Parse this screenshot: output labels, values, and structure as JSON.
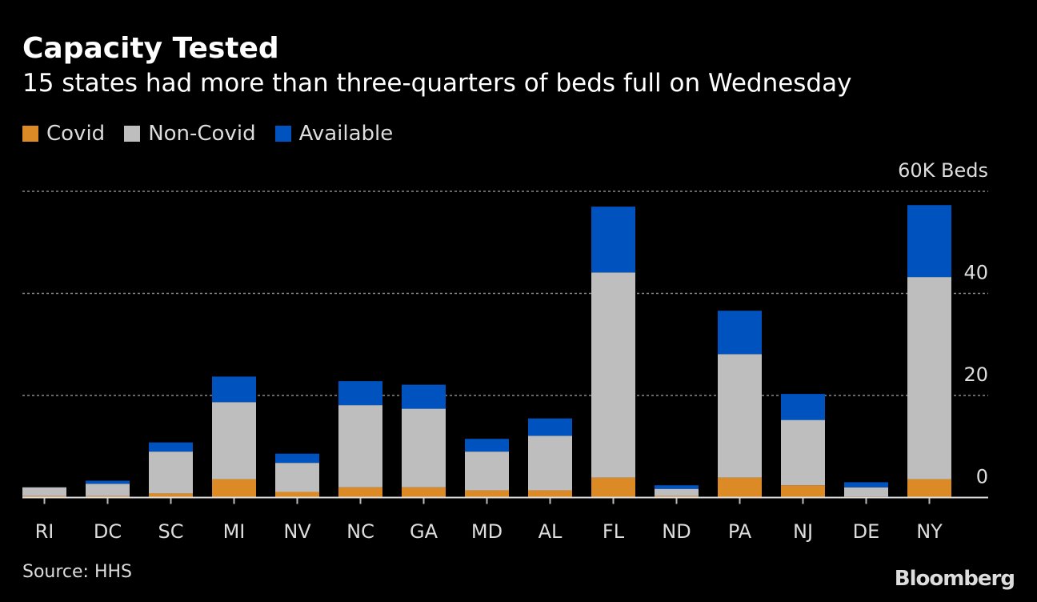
{
  "chart_data": {
    "type": "bar",
    "stacked": true,
    "title": "Capacity Tested",
    "subtitle": "15 states had more than three-quarters of beds full on Wednesday",
    "categories": [
      "RI",
      "DC",
      "SC",
      "MI",
      "NV",
      "NC",
      "GA",
      "MD",
      "AL",
      "FL",
      "ND",
      "PA",
      "NJ",
      "DE",
      "NY"
    ],
    "series": [
      {
        "name": "Covid",
        "color": "#DB8A26",
        "values": [
          0.3,
          0.3,
          0.8,
          3.6,
          1.1,
          2.0,
          2.0,
          1.4,
          1.4,
          3.9,
          0.3,
          3.9,
          2.4,
          0.2,
          3.6
        ]
      },
      {
        "name": "Non-Covid",
        "color": "#BEBEBE",
        "values": [
          1.7,
          2.4,
          8.2,
          15.1,
          5.7,
          16.1,
          15.4,
          7.6,
          10.7,
          40.2,
          1.4,
          24.2,
          12.8,
          1.8,
          39.6
        ]
      },
      {
        "name": "Available",
        "color": "#0052BF",
        "values": [
          0,
          0.6,
          1.8,
          5.0,
          1.8,
          4.7,
          4.7,
          2.5,
          3.4,
          12.9,
          0.7,
          8.5,
          5.1,
          1.0,
          14.1
        ]
      }
    ],
    "ylim": [
      0,
      60
    ],
    "yticks": [
      {
        "value": 0,
        "label": "0"
      },
      {
        "value": 20,
        "label": "20"
      },
      {
        "value": 40,
        "label": "40"
      },
      {
        "value": 60,
        "label": "60K Beds"
      }
    ],
    "grid": true,
    "legend_position": "top-left",
    "source": "Source: HHS"
  },
  "branding": "Bloomberg"
}
